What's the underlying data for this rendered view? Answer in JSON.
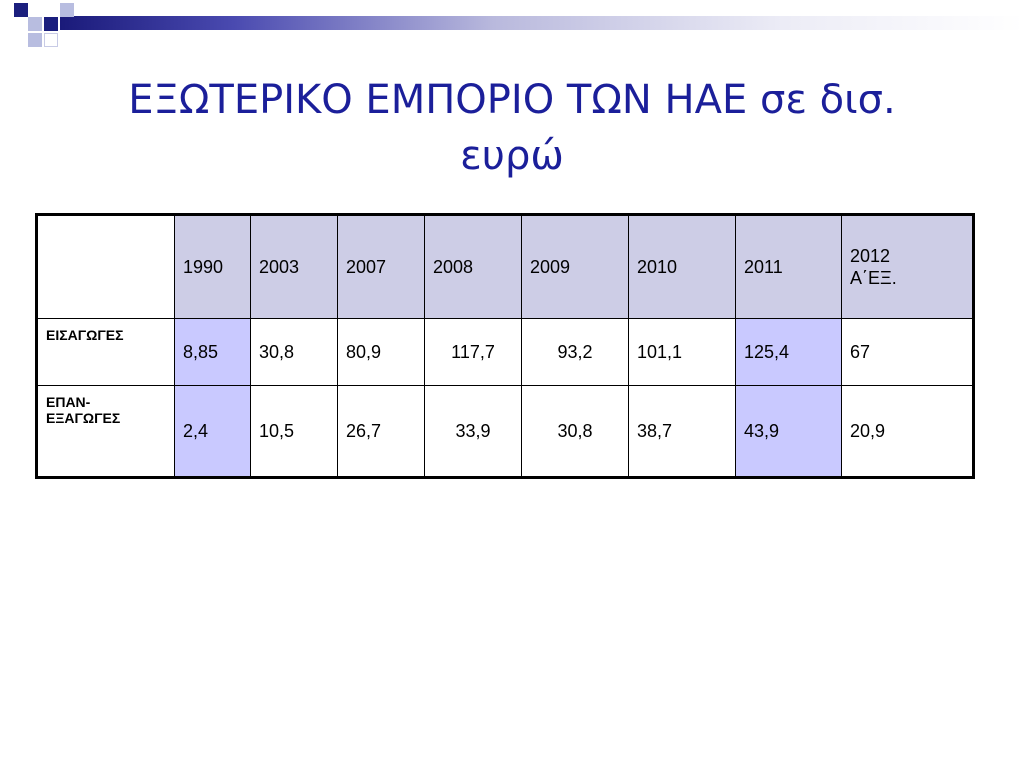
{
  "title": "ΕΞΩΤΕΡΙΚΟ ΕΜΠΟΡΙΟ ΤΩΝ ΗΑΕ σε δισ. ευρώ",
  "title_line1": "ΕΞΩΤΕΡΙΚΟ ΕΜΠΟΡΙΟ ΤΩΝ ΗΑΕ σε δισ.",
  "title_line2": "ευρώ",
  "colors": {
    "title": "#1b1f9a",
    "header_fill": "#cdcde6",
    "highlight_fill": "#c9c9ff"
  },
  "table": {
    "headers": [
      "1990",
      "2003",
      "2007",
      "2008",
      "2009",
      "2010",
      "2011",
      "2012"
    ],
    "last_header_suffix": "Α΄ΕΞ.",
    "rows": [
      {
        "label": "ΕΙΣΑΓΩΓΕΣ",
        "values": [
          "8,85",
          "30,8",
          "80,9",
          "117,7",
          "93,2",
          "101,1",
          "125,4",
          "67"
        ]
      },
      {
        "label_line1": "ΕΠΑΝ-",
        "label_line2": "ΕΞΑΓΩΓΕΣ",
        "values": [
          "2,4",
          "10,5",
          "26,7",
          "33,9",
          "30,8",
          "38,7",
          "43,9",
          "20,9"
        ]
      }
    ]
  }
}
